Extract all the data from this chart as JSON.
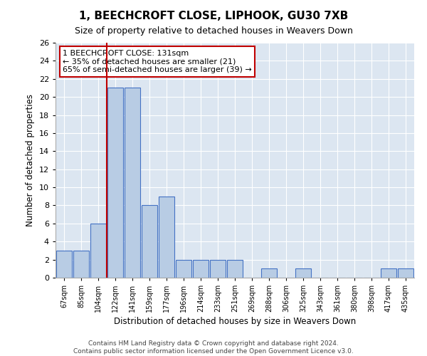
{
  "title": "1, BEECHCROFT CLOSE, LIPHOOK, GU30 7XB",
  "subtitle": "Size of property relative to detached houses in Weavers Down",
  "xlabel": "Distribution of detached houses by size in Weavers Down",
  "ylabel": "Number of detached properties",
  "categories": [
    "67sqm",
    "85sqm",
    "104sqm",
    "122sqm",
    "141sqm",
    "159sqm",
    "177sqm",
    "196sqm",
    "214sqm",
    "233sqm",
    "251sqm",
    "269sqm",
    "288sqm",
    "306sqm",
    "325sqm",
    "343sqm",
    "361sqm",
    "380sqm",
    "398sqm",
    "417sqm",
    "435sqm"
  ],
  "values": [
    3,
    3,
    6,
    21,
    21,
    8,
    9,
    2,
    2,
    2,
    2,
    0,
    1,
    0,
    1,
    0,
    0,
    0,
    0,
    1,
    1
  ],
  "bar_color": "#b8cce4",
  "bar_edge_color": "#4472c4",
  "vline_x_index": 3,
  "vline_color": "#c00000",
  "annotation_title": "1 BEECHCROFT CLOSE: 131sqm",
  "annotation_line2": "← 35% of detached houses are smaller (21)",
  "annotation_line3": "65% of semi-detached houses are larger (39) →",
  "annotation_box_color": "#c00000",
  "ylim": [
    0,
    26
  ],
  "yticks": [
    0,
    2,
    4,
    6,
    8,
    10,
    12,
    14,
    16,
    18,
    20,
    22,
    24,
    26
  ],
  "bg_color": "#dce6f1",
  "fig_bg_color": "#ffffff",
  "footer_line1": "Contains HM Land Registry data © Crown copyright and database right 2024.",
  "footer_line2": "Contains public sector information licensed under the Open Government Licence v3.0."
}
